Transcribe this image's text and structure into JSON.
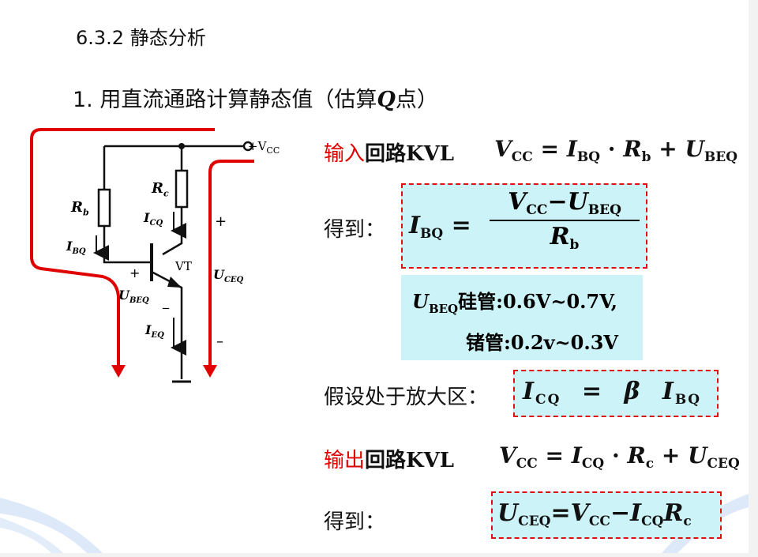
{
  "title": "6.3.2 静态分析",
  "subtitle": {
    "prefix": "1. 用直流通路计算静态值（估算",
    "q": "Q",
    "suffix": "点）"
  },
  "circuit": {
    "vcc": "+V",
    "vcc_sub": "CC",
    "rc": "R",
    "rc_sub": "c",
    "rb": "R",
    "rb_sub": "b",
    "icq": "I",
    "icq_sub": "CQ",
    "ibq": "I",
    "ibq_sub": "BQ",
    "ieq": "I",
    "ieq_sub": "EQ",
    "vt": "VT",
    "ubeq": "U",
    "ubeq_sub": "BEQ",
    "uceq": "U",
    "uceq_sub": "CEQ",
    "plus1": "+",
    "plus2": "+",
    "minus1": "_",
    "minus2": "–"
  },
  "input_loop": {
    "red_label": "输入",
    "label": "回路KVL",
    "eq_lhs": "V",
    "eq_lhs_sub": "CC",
    "eq_rhs1": "I",
    "eq_rhs1_sub": "BQ",
    "eq_rhs2": "R",
    "eq_rhs2_sub": "b",
    "eq_rhs3": "U",
    "eq_rhs3_sub": "BEQ"
  },
  "get1": {
    "label": "得到：",
    "lhs": "I",
    "lhs_sub": "BQ",
    "num_a": "V",
    "num_a_sub": "CC",
    "num_minus": "−",
    "num_b": "U",
    "num_b_sub": "BEQ",
    "den": "R",
    "den_sub": "b"
  },
  "note": {
    "sym": "U",
    "sym_sub": "BEQ",
    "line1": "硅管:0.6V~0.7V,",
    "line2": "锗管:0.2v~0.3V"
  },
  "assume": {
    "label": "假设处于放大区：",
    "lhs": "I",
    "lhs_sub": "CQ",
    "eq": "=",
    "beta": "β",
    "rhs": "I",
    "rhs_sub": "BQ"
  },
  "output_loop": {
    "red_label": "输出",
    "label": "回路KVL",
    "eq_lhs": "V",
    "eq_lhs_sub": "CC",
    "eq_rhs1": "I",
    "eq_rhs1_sub": "CQ",
    "eq_rhs2": "R",
    "eq_rhs2_sub": "c",
    "eq_rhs3": "U",
    "eq_rhs3_sub": "CEQ"
  },
  "get2": {
    "label": "得到：",
    "lhs": "U",
    "lhs_sub": "CEQ",
    "a": "V",
    "a_sub": "CC",
    "b": "I",
    "b_sub": "CQ",
    "c": "R",
    "c_sub": "c"
  }
}
